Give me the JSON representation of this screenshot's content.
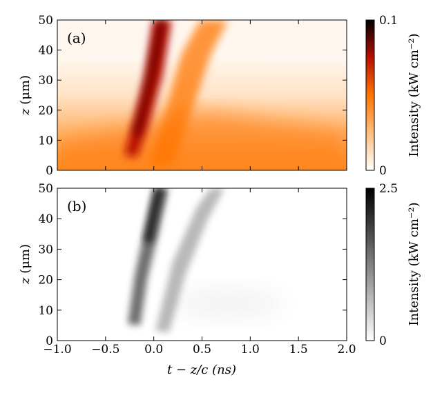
{
  "chart_data": [
    {
      "type": "heatmap",
      "panel_label": "(a)",
      "xlim": [
        -1.0,
        2.0
      ],
      "ylim": [
        0,
        50
      ],
      "y_ticks": [
        "0",
        "10",
        "20",
        "30",
        "40",
        "50"
      ],
      "ylabel_var": "z",
      "ylabel_unit": "(μm)",
      "colormap": "gist_heat_r",
      "colorbar": {
        "min": 0,
        "max": 0.1,
        "min_label": "0",
        "max_label": "0.1",
        "label": "Intensity (kW cm⁻²)"
      },
      "features": [
        {
          "kind": "streak",
          "z": [
            5,
            50
          ],
          "t_start": -0.2,
          "t_end": 0.08,
          "peak_intensity": 0.1
        },
        {
          "kind": "streak",
          "z": [
            10,
            50
          ],
          "t_start": 0.05,
          "t_end": 0.45,
          "peak_intensity": 0.05
        },
        {
          "kind": "background",
          "z": [
            0,
            25
          ],
          "t": [
            -1.0,
            2.0
          ],
          "intensity": 0.03
        }
      ]
    },
    {
      "type": "heatmap",
      "panel_label": "(b)",
      "xlim": [
        -1.0,
        2.0
      ],
      "ylim": [
        0,
        50
      ],
      "x_ticks": [
        "−1.0",
        "−0.5",
        "0.0",
        "0.5",
        "1.0",
        "1.5",
        "2.0"
      ],
      "y_ticks": [
        "0",
        "10",
        "20",
        "30",
        "40",
        "50"
      ],
      "xlabel": "t − z/c (ns)",
      "ylabel_var": "z",
      "ylabel_unit": "(μm)",
      "colormap": "gray_r",
      "colorbar": {
        "min": 0,
        "max": 2.5,
        "min_label": "0",
        "max_label": "2.5",
        "label": "Intensity (kW cm⁻²)"
      },
      "features": [
        {
          "kind": "streak",
          "z": [
            5,
            50
          ],
          "t_start": -0.2,
          "t_end": 0.08,
          "peak_intensity": 2.5
        },
        {
          "kind": "streak",
          "z": [
            5,
            45
          ],
          "t_start": 0.1,
          "t_end": 0.55,
          "peak_intensity": 1.0
        }
      ]
    }
  ]
}
